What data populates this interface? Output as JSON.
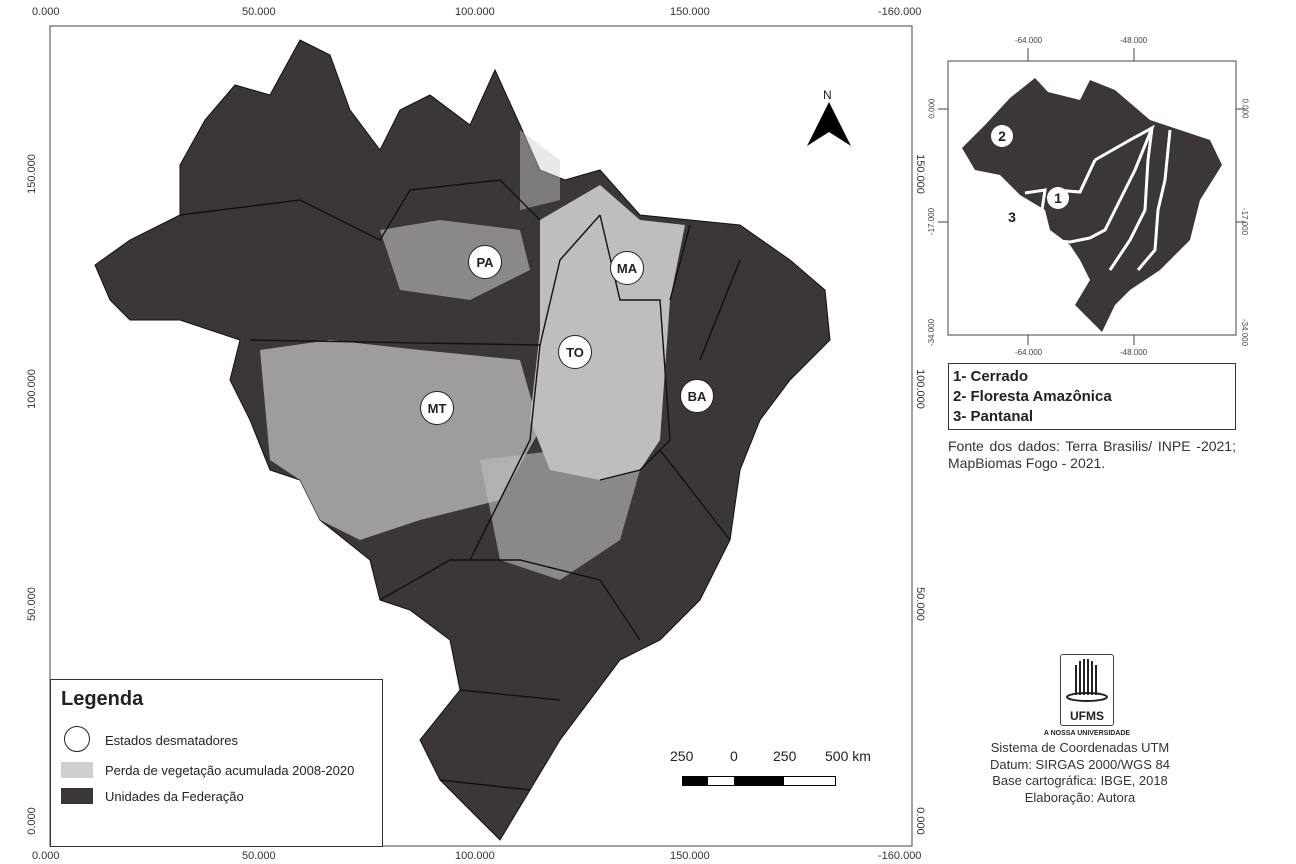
{
  "main_map": {
    "x_ticks": [
      "0.000",
      "50.000",
      "100.000",
      "150.000",
      "-160.000"
    ],
    "y_ticks": [
      "150.000",
      "100.000",
      "50.000",
      "0.000"
    ],
    "north_label": "N",
    "state_markers": [
      "PA",
      "MA",
      "TO",
      "MT",
      "BA"
    ],
    "colors": {
      "federation_units": "#3b3637",
      "vegetation_loss": "#cfcfcf",
      "markers": "#ffffff"
    }
  },
  "legend": {
    "title": "Legenda",
    "items": [
      {
        "label": "Estados desmatadores",
        "symbol": "white-circle"
      },
      {
        "label": "Perda de vegetação acumulada 2008-2020",
        "symbol": "light-gray-fill"
      },
      {
        "label": "Unidades da Federação",
        "symbol": "dark-gray-fill"
      }
    ]
  },
  "scale_bar": {
    "labels": [
      "250",
      "0",
      "250",
      "500 km"
    ]
  },
  "inset_map": {
    "x_ticks": [
      "-64.000",
      "-48.000"
    ],
    "y_ticks": [
      "0.000",
      "-17.000",
      "-34.000"
    ],
    "markers": [
      "1",
      "2",
      "3"
    ],
    "legend": [
      "1- Cerrado",
      "2- Floresta Amazônica",
      "3- Pantanal"
    ]
  },
  "source_text": "Fonte dos dados: Terra Brasilis/ INPE -2021; MapBiomas Fogo - 2021.",
  "logo": {
    "text": "UFMS",
    "tagline": "A NOSSA UNIVERSIDADE"
  },
  "credits": [
    "Sistema de Coordenadas UTM",
    "Datum: SIRGAS 2000/WGS 84",
    "Base cartográfica: IBGE, 2018",
    "Elaboração: Autora"
  ]
}
